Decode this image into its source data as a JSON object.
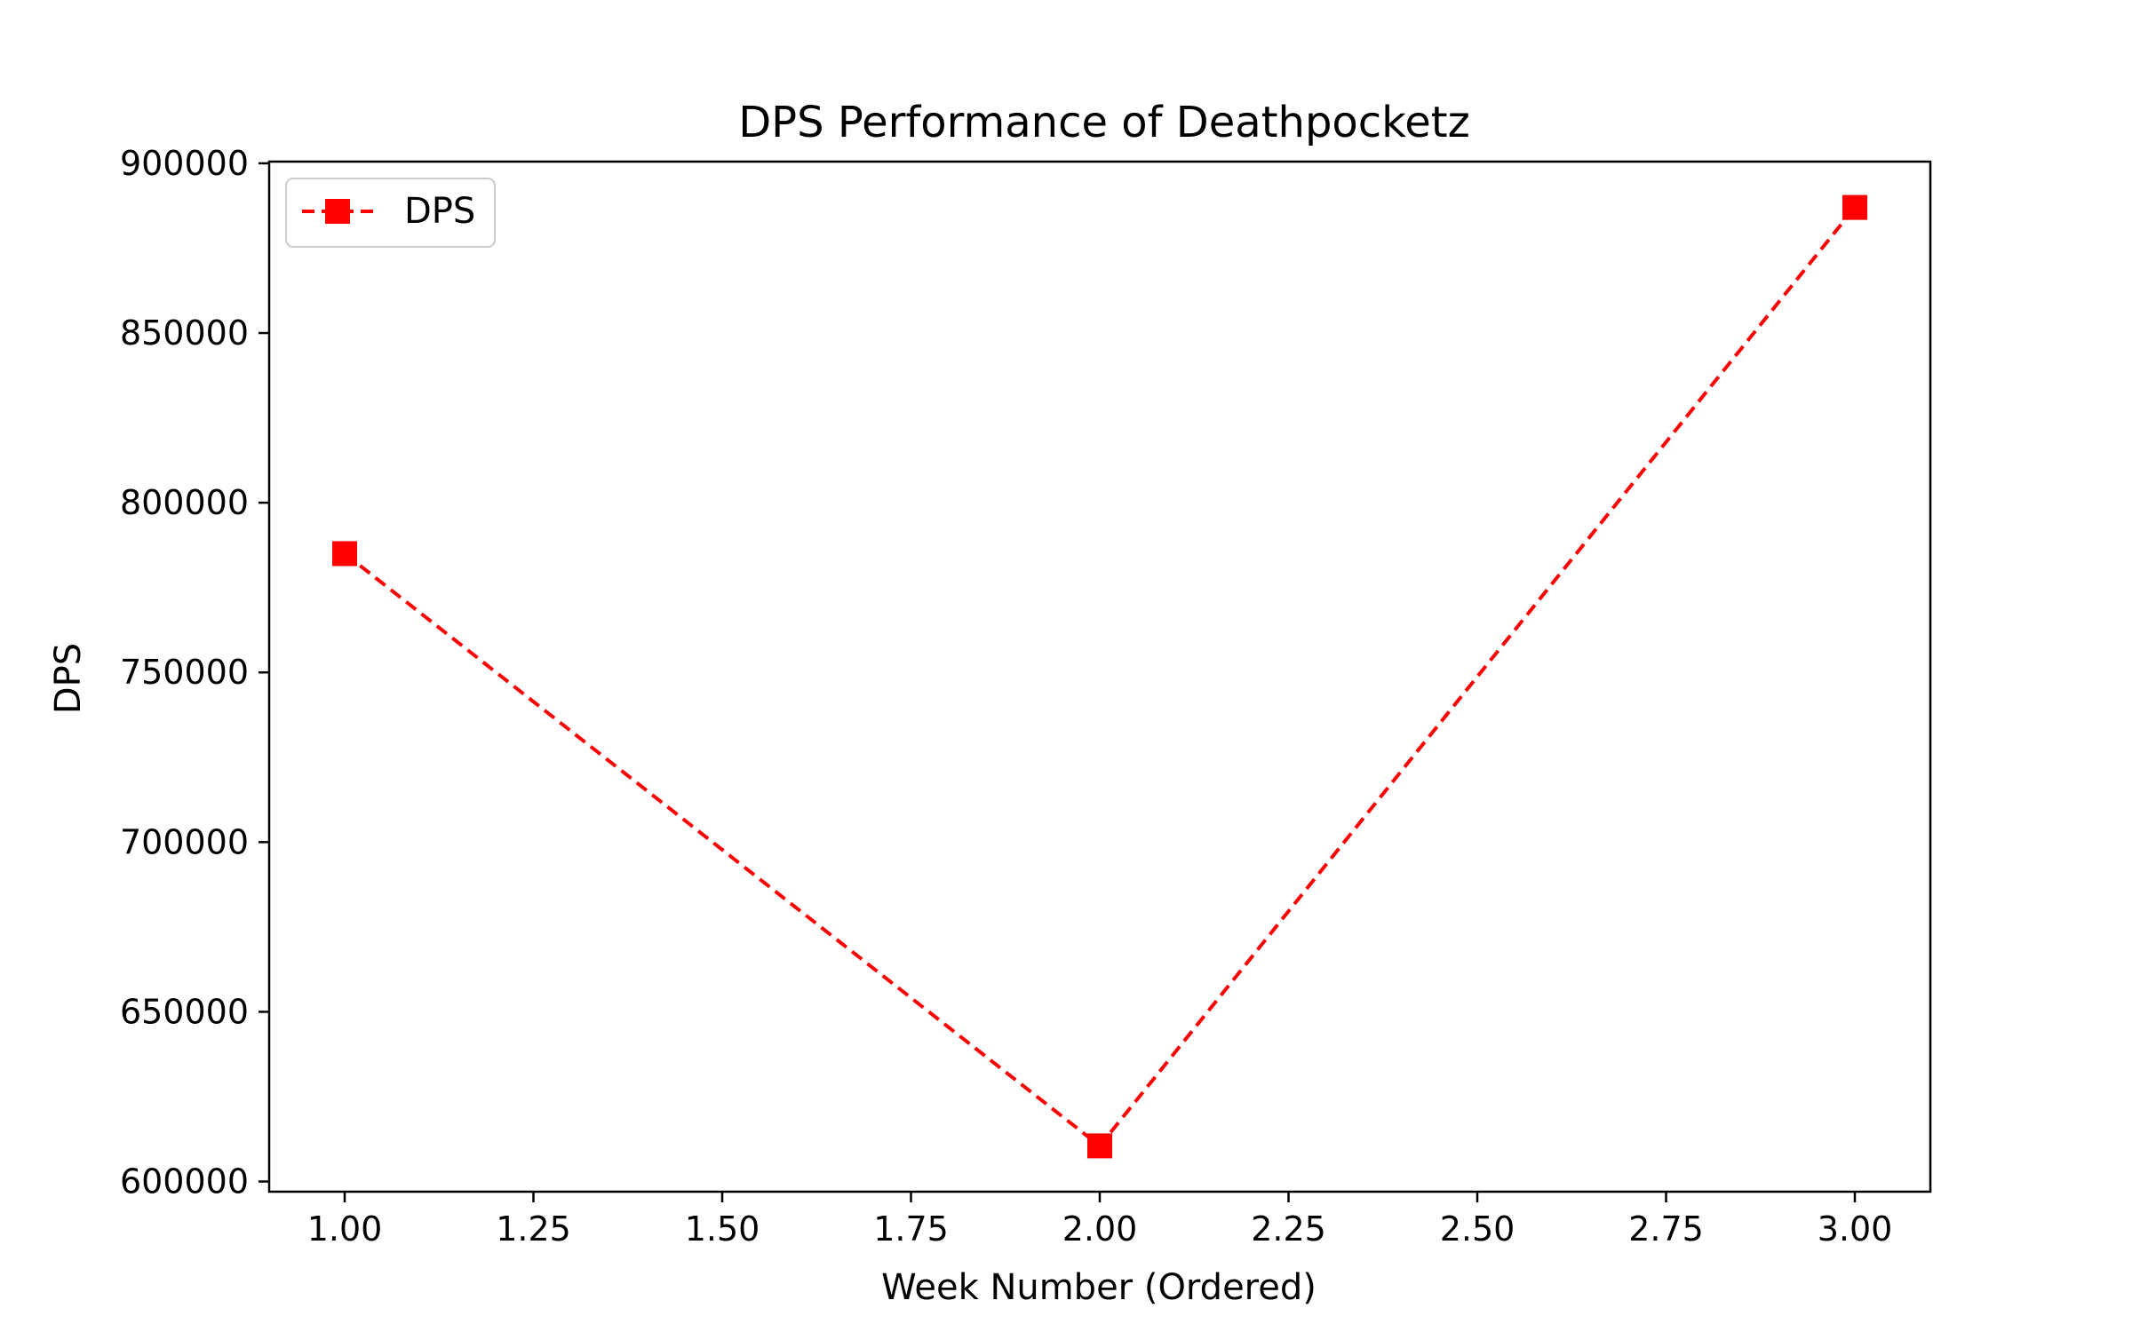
{
  "chart_data": {
    "type": "line",
    "title": "DPS Performance of Deathpocketz",
    "xlabel": "Week Number (Ordered)",
    "ylabel": "DPS",
    "xlim": [
      0.9,
      3.1
    ],
    "ylim": [
      597000,
      900500
    ],
    "xticks": [
      1.0,
      1.25,
      1.5,
      1.75,
      2.0,
      2.25,
      2.5,
      2.75,
      3.0
    ],
    "xtick_labels": [
      "1.00",
      "1.25",
      "1.50",
      "1.75",
      "2.00",
      "2.25",
      "2.50",
      "2.75",
      "3.00"
    ],
    "yticks": [
      600000,
      650000,
      700000,
      750000,
      800000,
      850000,
      900000
    ],
    "ytick_labels": [
      "600000",
      "650000",
      "700000",
      "750000",
      "800000",
      "850000",
      "900000"
    ],
    "grid": false,
    "legend_position": "top-left",
    "series": [
      {
        "name": "DPS",
        "x": [
          1,
          2,
          3
        ],
        "y": [
          785000,
          610500,
          887000
        ],
        "color": "#ff0000",
        "line_style": "dashed",
        "marker": "square"
      }
    ]
  }
}
